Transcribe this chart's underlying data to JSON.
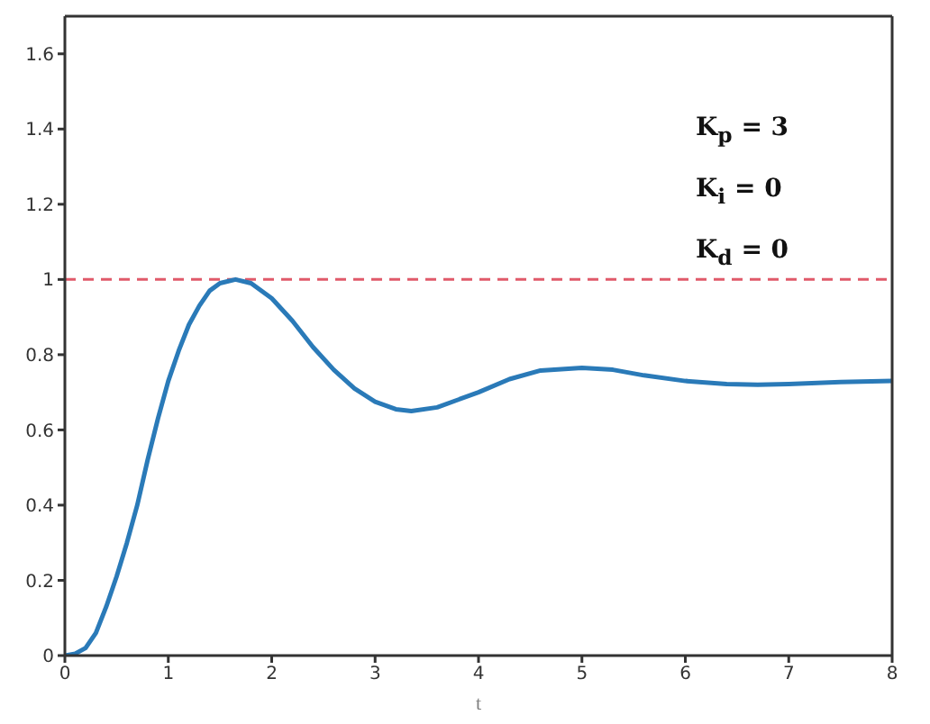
{
  "chart_data": {
    "type": "line",
    "xlabel": "t",
    "x": [
      0,
      0.1,
      0.2,
      0.3,
      0.4,
      0.5,
      0.6,
      0.7,
      0.8,
      0.9,
      1.0,
      1.1,
      1.2,
      1.3,
      1.4,
      1.5,
      1.65,
      1.8,
      2.0,
      2.2,
      2.4,
      2.6,
      2.8,
      3.0,
      3.2,
      3.35,
      3.6,
      3.8,
      4.0,
      4.3,
      4.6,
      5.0,
      5.3,
      5.6,
      6.0,
      6.4,
      6.7,
      7.0,
      7.5,
      8.0
    ],
    "series": [
      {
        "color": "#2a7ab8",
        "values": [
          0,
          0.005,
          0.02,
          0.06,
          0.13,
          0.21,
          0.3,
          0.4,
          0.52,
          0.63,
          0.73,
          0.81,
          0.88,
          0.93,
          0.97,
          0.99,
          1.0,
          0.99,
          0.95,
          0.89,
          0.82,
          0.76,
          0.71,
          0.675,
          0.655,
          0.65,
          0.66,
          0.68,
          0.7,
          0.735,
          0.758,
          0.765,
          0.76,
          0.745,
          0.73,
          0.722,
          0.72,
          0.722,
          0.727,
          0.73
        ]
      }
    ],
    "xlim": [
      0,
      8
    ],
    "xticks": [
      0,
      1,
      2,
      3,
      4,
      5,
      6,
      7,
      8
    ],
    "ylim": [
      0,
      1.7
    ],
    "yticks": [
      0,
      0.2,
      0.4,
      0.6,
      0.8,
      1,
      1.2,
      1.4,
      1.6
    ],
    "ref_lines": [
      {
        "axis": "y",
        "value": 1,
        "color": "#e05a6a",
        "line_style": "dashed"
      }
    ],
    "annotations": [
      "K$_{p}$ = 3",
      "K$_{i}$ = 0",
      "K$_{d}$ = 0"
    ],
    "grid": false,
    "legend": false,
    "marker": "none",
    "line_style": "solid"
  }
}
